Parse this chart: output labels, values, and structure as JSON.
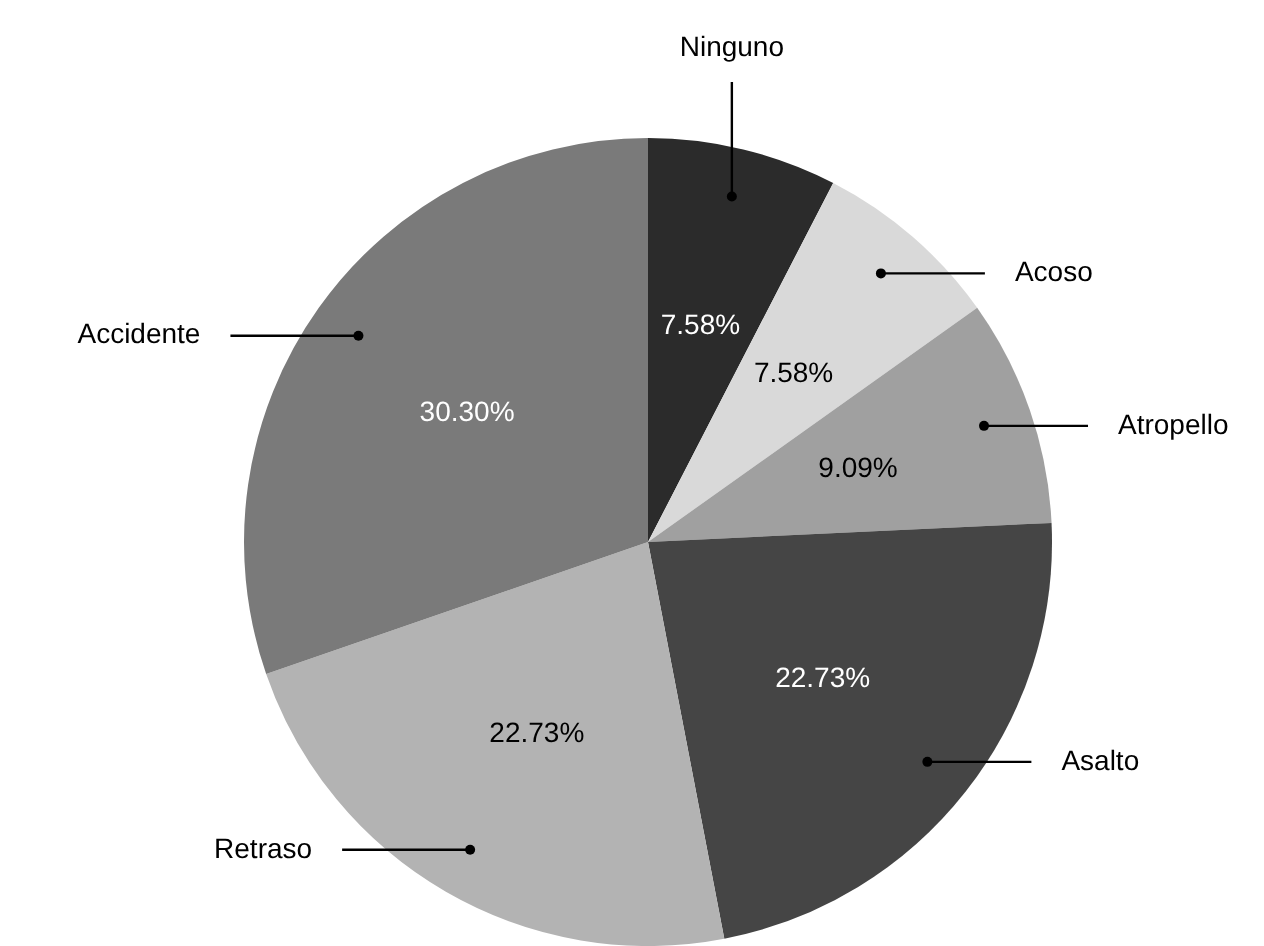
{
  "chart_data": {
    "type": "pie",
    "categories": [
      "Ninguno",
      "Acoso",
      "Atropello",
      "Asalto",
      "Retraso",
      "Accidente"
    ],
    "values": [
      7.58,
      7.58,
      9.09,
      22.73,
      22.73,
      30.3
    ],
    "value_labels": [
      "7.58%",
      "7.58%",
      "9.09%",
      "22.73%",
      "22.73%",
      "30.30%"
    ],
    "colors": [
      "#2b2b2b",
      "#d9d9d9",
      "#a0a0a0",
      "#454545",
      "#b3b3b3",
      "#7a7a7a"
    ],
    "legend": false
  }
}
